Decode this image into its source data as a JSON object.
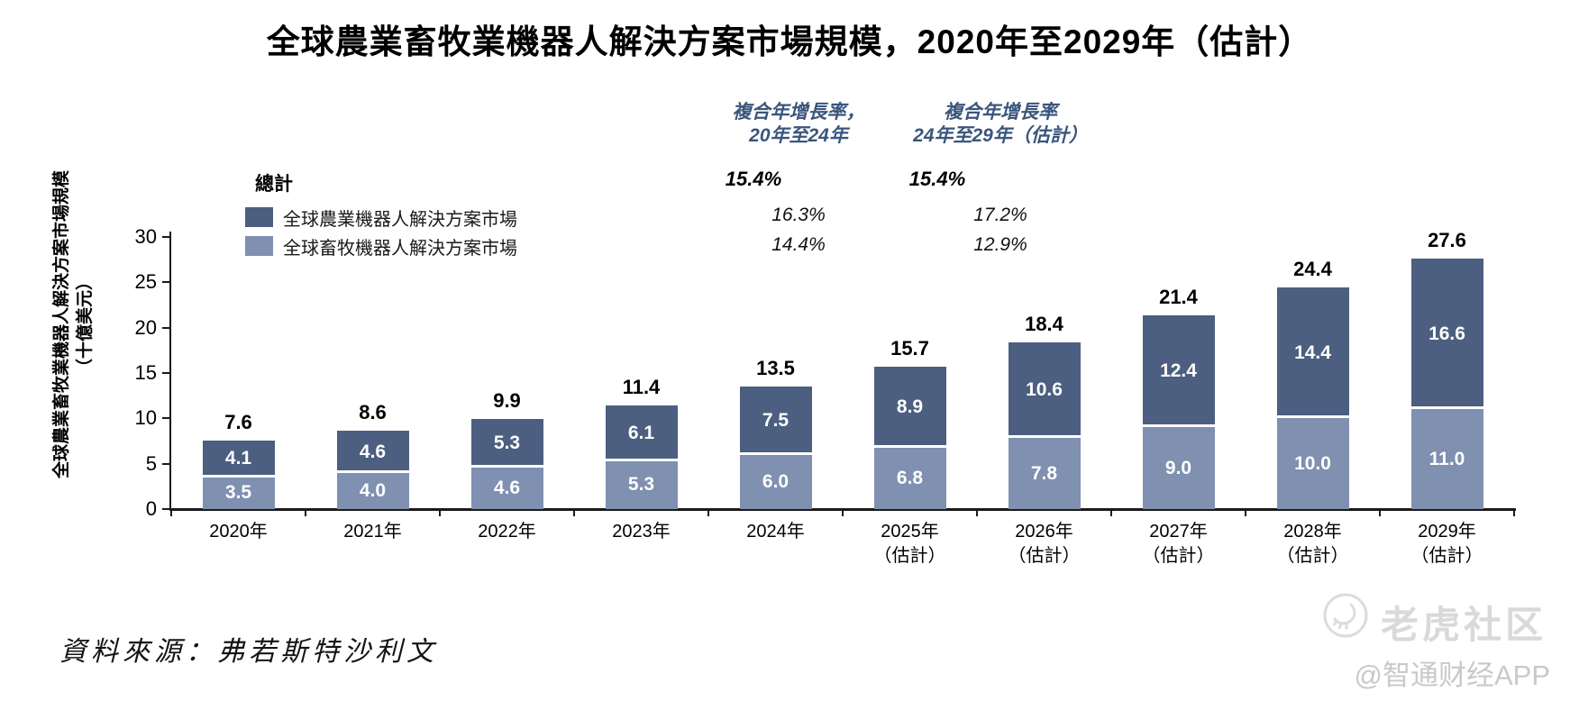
{
  "page": {
    "title": "全球農業畜牧業機器人解決方案市場規模，2020年至2029年（估計）",
    "source": "資料來源：弗若斯特沙利文"
  },
  "y_axis": {
    "title_line1": "全球農業畜牧業機器人解決方案市場規模",
    "title_line2": "（十億美元）"
  },
  "legend": {
    "total_label": "總計",
    "items": [
      {
        "label": "全球農業機器人解決方案市場",
        "color": "#4d5f80"
      },
      {
        "label": "全球畜牧機器人解決方案市場",
        "color": "#7f90b0"
      }
    ]
  },
  "cagr_table": {
    "header_color": "#3a567c",
    "columns": [
      {
        "header_line1": "複合年增長率，",
        "header_line2": "20年至24年",
        "total": "15.4%",
        "agriculture": "16.3%",
        "livestock": "14.4%"
      },
      {
        "header_line1": "複合年增長率",
        "header_line2": "24年至29年（估計）",
        "total": "15.4%",
        "agriculture": "17.2%",
        "livestock": "12.9%"
      }
    ]
  },
  "watermark": {
    "community": "老虎社区",
    "app_handle": "@智通财经APP"
  },
  "chart_data": {
    "type": "bar",
    "stacked": true,
    "title": "全球農業畜牧業機器人解決方案市場規模，2020年至2029年（估計）",
    "ylabel": "全球農業畜牧業機器人解決方案市場規模（十億美元）",
    "xlabel": "",
    "ylim": [
      0,
      30
    ],
    "yticks": [
      0,
      5,
      10,
      15,
      20,
      25,
      30
    ],
    "grid": false,
    "legend_position": "top-left",
    "categories": [
      "2020年",
      "2021年",
      "2022年",
      "2023年",
      "2024年",
      "2025年",
      "2026年",
      "2027年",
      "2028年",
      "2029年"
    ],
    "category_sublabels": [
      "",
      "",
      "",
      "",
      "",
      "（估計）",
      "（估計）",
      "（估計）",
      "（估計）",
      "（估計）"
    ],
    "series": [
      {
        "name": "全球農業機器人解決方案市場",
        "color": "#4d5f80",
        "values": [
          4.1,
          4.6,
          5.3,
          6.1,
          7.5,
          8.9,
          10.6,
          12.4,
          14.4,
          16.6
        ]
      },
      {
        "name": "全球畜牧機器人解決方案市場",
        "color": "#7f90b0",
        "values": [
          3.5,
          4.0,
          4.6,
          5.3,
          6.0,
          6.8,
          7.8,
          9.0,
          10.0,
          11.0
        ]
      }
    ],
    "totals": [
      7.6,
      8.6,
      9.9,
      11.4,
      13.5,
      15.7,
      18.4,
      21.4,
      24.4,
      27.6
    ]
  }
}
